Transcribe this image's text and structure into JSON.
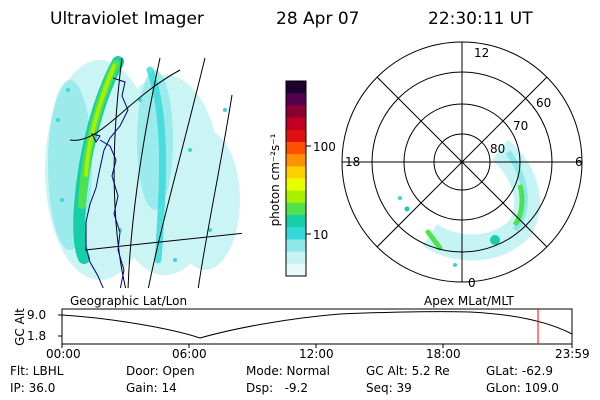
{
  "header": {
    "instrument": "Ultraviolet Imager",
    "date": "28 Apr 07",
    "time": "22:30:11 UT"
  },
  "colorbar": {
    "unit_label": "photon cm⁻²s⁻¹",
    "ticks": [
      "100",
      "10"
    ],
    "colors": [
      "#1e0030",
      "#55004d",
      "#8b0033",
      "#c00020",
      "#e01010",
      "#ff5000",
      "#ff9000",
      "#ffd000",
      "#e8ff00",
      "#a6f000",
      "#4ee24e",
      "#16cfa8",
      "#33d8d8",
      "#8ee8ea",
      "#c6f3f4",
      "#e6f8f8"
    ]
  },
  "geo_map": {
    "label": "Geographic Lat/Lon"
  },
  "polar_plot": {
    "label": "Apex  MLat/MLT",
    "mlt_labels": [
      "12",
      "6",
      "0",
      "18"
    ],
    "lat_labels": [
      "60",
      "70",
      "80"
    ]
  },
  "altitude_plot": {
    "ylabel": "GC Alt",
    "yticks": [
      "9.0",
      "1.8"
    ],
    "xticks": [
      "00:00",
      "06:00",
      "12:00",
      "18:00",
      "23:59"
    ],
    "marker_time": "22:30",
    "marker_color": "#ff0000"
  },
  "info": {
    "row1": {
      "filter": "Flt: LBHL",
      "door": "Door: Open",
      "mode": "Mode: Normal",
      "gc_alt": "GC Alt: 5.2 Re",
      "glat": "GLat: -62.9"
    },
    "row2": {
      "ip": "IP: 36.0",
      "gain": "Gain: 14",
      "dsp": "Dsp:   -9.2",
      "seq": "Seq: 39",
      "glon": "GLon: 109.0"
    }
  },
  "colors": {
    "axis": "#000000",
    "coast": "#000080",
    "marker": "#ff0000"
  }
}
